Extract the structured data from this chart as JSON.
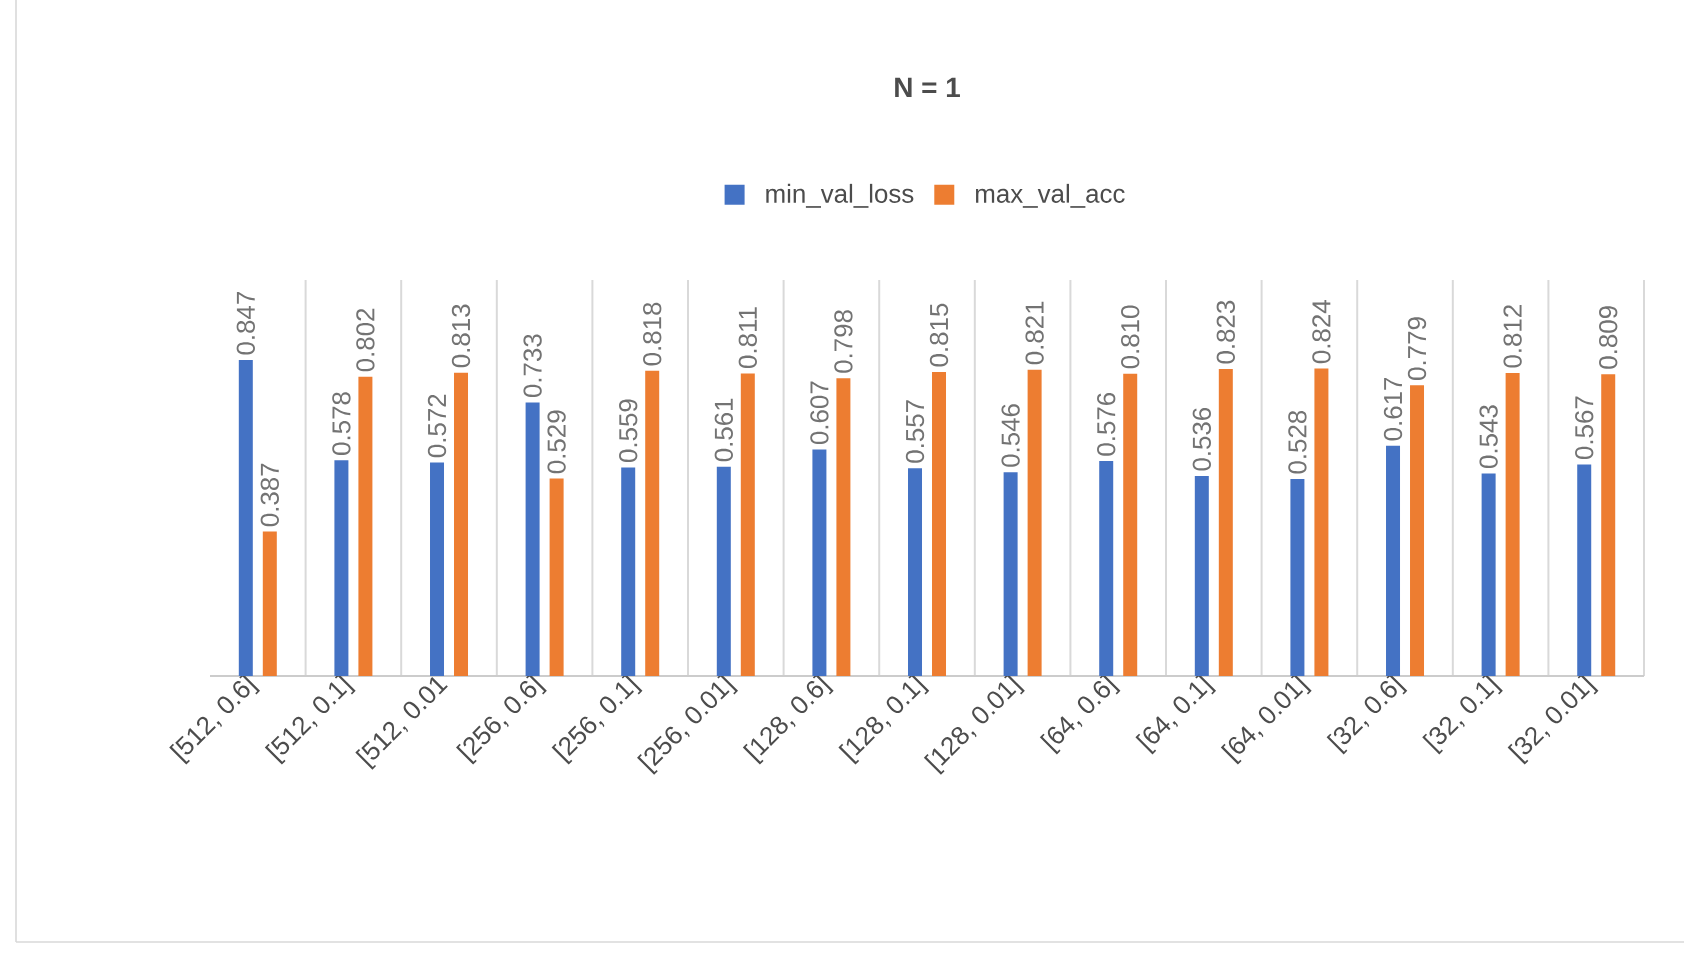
{
  "chart_data": {
    "type": "bar",
    "title": "N = 1",
    "categories": [
      "[512, 0.6]",
      "[512, 0.1]",
      "[512, 0.01",
      "[256, 0.6]",
      "[256, 0.1]",
      "[256, 0.01]",
      "[128, 0.6]",
      "[128, 0.1]",
      "[128, 0.01]",
      "[64, 0.6]",
      "[64, 0.1]",
      "[64, 0.01]",
      "[32, 0.6]",
      "[32, 0.1]",
      "[32, 0.01]"
    ],
    "series": [
      {
        "name": "min_val_loss",
        "color": "#4472c4",
        "values": [
          0.847,
          0.578,
          0.572,
          0.733,
          0.559,
          0.561,
          0.607,
          0.557,
          0.546,
          0.576,
          0.536,
          0.528,
          0.617,
          0.543,
          0.567
        ],
        "value_labels": [
          "0.847",
          "0.578",
          "0.572",
          "0.733",
          "0.559",
          "0.561",
          "0.607",
          "0.557",
          "0.546",
          "0.576",
          "0.536",
          "0.528",
          "0.617",
          "0.543",
          "0.567"
        ]
      },
      {
        "name": "max_val_acc",
        "color": "#ed7d31",
        "values": [
          0.387,
          0.802,
          0.813,
          0.529,
          0.818,
          0.811,
          0.798,
          0.815,
          0.821,
          0.81,
          0.823,
          0.824,
          0.779,
          0.812,
          0.809
        ],
        "value_labels": [
          "0.387",
          "0.802",
          "0.813",
          "0.529",
          "0.818",
          "0.811",
          "0.798",
          "0.815",
          "0.821",
          "0.810",
          "0.823",
          "0.824",
          "0.779",
          "0.812",
          "0.809"
        ]
      }
    ],
    "grid": "x",
    "legend": "top"
  }
}
